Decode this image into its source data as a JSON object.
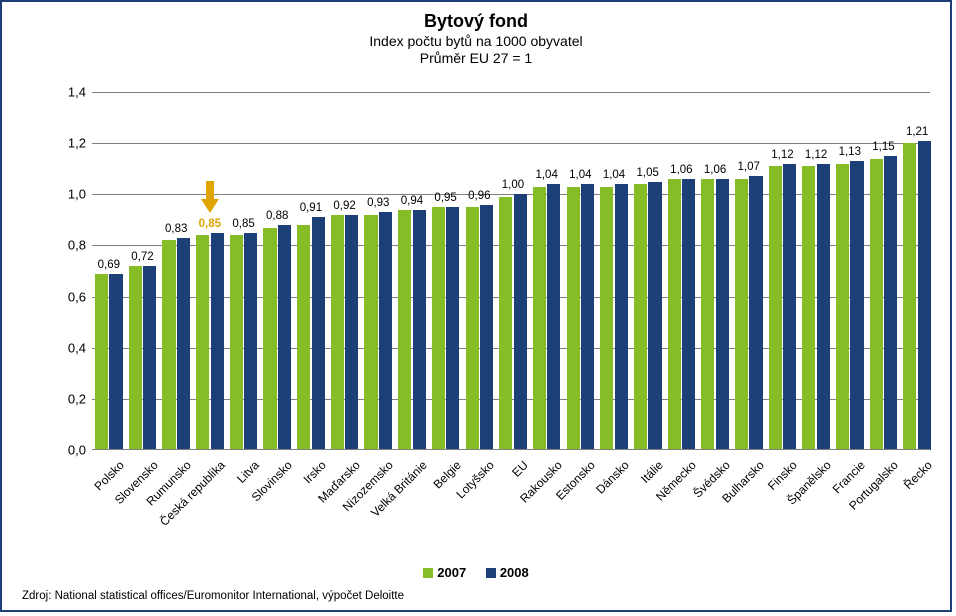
{
  "chart": {
    "type": "bar",
    "title": "Bytový fond",
    "subtitle1": "Index počtu bytů na 1000 obyvatel",
    "subtitle2": "Průměr EU 27 = 1",
    "title_fontsize": 18,
    "subtitle_fontsize": 14,
    "background_color": "#ffffff",
    "border_color": "#1d3f78",
    "grid_color": "#808080",
    "ylim": [
      0,
      1.4
    ],
    "ytick_step": 0.2,
    "yticks": [
      "0,0",
      "0,2",
      "0,4",
      "0,6",
      "0,8",
      "1,0",
      "1,2",
      "1,4"
    ],
    "label_fontsize": 13,
    "datalabel_fontsize": 11.5,
    "xlabel_fontsize": 12,
    "xlabel_rotation": -45,
    "series": [
      {
        "name": "2007",
        "color": "#86bc25"
      },
      {
        "name": "2008",
        "color": "#1d3f78"
      }
    ],
    "bar_group_gap": 0.18,
    "bar_inner_gap": 0.04,
    "categories": [
      {
        "name": "Polsko",
        "v2007": 0.69,
        "v2008": 0.69,
        "label": "0,69"
      },
      {
        "name": "Slovensko",
        "v2007": 0.72,
        "v2008": 0.72,
        "label": "0,72"
      },
      {
        "name": "Rumunsko",
        "v2007": 0.82,
        "v2008": 0.83,
        "label": "0,83"
      },
      {
        "name": "Česká republika",
        "v2007": 0.84,
        "v2008": 0.85,
        "label": "0,85",
        "highlight": true
      },
      {
        "name": "Litva",
        "v2007": 0.84,
        "v2008": 0.85,
        "label": "0,85"
      },
      {
        "name": "Slovinsko",
        "v2007": 0.87,
        "v2008": 0.88,
        "label": "0,88"
      },
      {
        "name": "Irsko",
        "v2007": 0.88,
        "v2008": 0.91,
        "label": "0,91"
      },
      {
        "name": "Maďarsko",
        "v2007": 0.92,
        "v2008": 0.92,
        "label": "0,92"
      },
      {
        "name": "Nizozemsko",
        "v2007": 0.92,
        "v2008": 0.93,
        "label": "0,93"
      },
      {
        "name": "Velká Británie",
        "v2007": 0.94,
        "v2008": 0.94,
        "label": "0,94"
      },
      {
        "name": "Belgie",
        "v2007": 0.95,
        "v2008": 0.95,
        "label": "0,95"
      },
      {
        "name": "Lotyšsko",
        "v2007": 0.95,
        "v2008": 0.96,
        "label": "0,96"
      },
      {
        "name": "EU",
        "v2007": 0.99,
        "v2008": 1.0,
        "label": "1,00"
      },
      {
        "name": "Rakousko",
        "v2007": 1.03,
        "v2008": 1.04,
        "label": "1,04"
      },
      {
        "name": "Estonsko",
        "v2007": 1.03,
        "v2008": 1.04,
        "label": "1,04"
      },
      {
        "name": "Dánsko",
        "v2007": 1.03,
        "v2008": 1.04,
        "label": "1,04"
      },
      {
        "name": "Itálie",
        "v2007": 1.04,
        "v2008": 1.05,
        "label": "1,05"
      },
      {
        "name": "Německo",
        "v2007": 1.06,
        "v2008": 1.06,
        "label": "1,06"
      },
      {
        "name": "Švédsko",
        "v2007": 1.06,
        "v2008": 1.06,
        "label": "1,06"
      },
      {
        "name": "Bulharsko",
        "v2007": 1.06,
        "v2008": 1.07,
        "label": "1,07"
      },
      {
        "name": "Finsko",
        "v2007": 1.11,
        "v2008": 1.12,
        "label": "1,12"
      },
      {
        "name": "Španělsko",
        "v2007": 1.11,
        "v2008": 1.12,
        "label": "1,12"
      },
      {
        "name": "Francie",
        "v2007": 1.12,
        "v2008": 1.13,
        "label": "1,13"
      },
      {
        "name": "Portugalsko",
        "v2007": 1.14,
        "v2008": 1.15,
        "label": "1,15"
      },
      {
        "name": "Řecko",
        "v2007": 1.2,
        "v2008": 1.21,
        "label": "1,21"
      }
    ],
    "highlight_arrow_color": "#e0a500",
    "legend": {
      "items": [
        {
          "label": "2007",
          "swatch": "#86bc25"
        },
        {
          "label": "2008",
          "swatch": "#1d3f78"
        }
      ]
    },
    "source": "Zdroj: National statistical offices/Euromonitor International, výpočet Deloitte"
  }
}
